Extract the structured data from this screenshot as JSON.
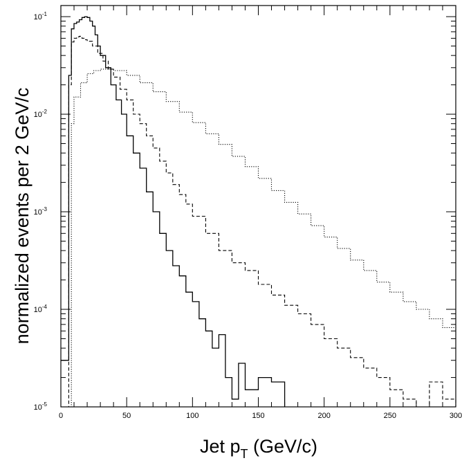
{
  "chart_data": {
    "type": "line",
    "title": "",
    "xlabel": "Jet p",
    "xlabel_sub": "T",
    "xlabel_unit": " (GeV/c)",
    "ylabel": "normalized events per 2 GeV/c",
    "xlim": [
      0,
      300
    ],
    "ylim": [
      1e-05,
      0.12
    ],
    "log_y": true,
    "grid": false,
    "x_ticks": [
      0,
      50,
      100,
      150,
      200,
      250,
      300
    ],
    "y_ticks": [
      {
        "value": 0.1,
        "base": "10",
        "exp": "-1"
      },
      {
        "value": 0.01,
        "base": "10",
        "exp": "-2"
      },
      {
        "value": 0.001,
        "base": "10",
        "exp": "-3"
      },
      {
        "value": 0.0001,
        "base": "10",
        "exp": "-4"
      },
      {
        "value": 1e-05,
        "base": "10",
        "exp": "-5"
      }
    ],
    "series": [
      {
        "style": "solid",
        "x": [
          0,
          4,
          6,
          8,
          10,
          12,
          14,
          16,
          18,
          20,
          22,
          24,
          26,
          28,
          30,
          34,
          38,
          42,
          46,
          50,
          55,
          60,
          65,
          70,
          75,
          80,
          85,
          90,
          95,
          100,
          105,
          110,
          115,
          120,
          125,
          130,
          135,
          140,
          150,
          160,
          170
        ],
        "y": [
          3e-05,
          3e-05,
          0.025,
          0.075,
          0.085,
          0.088,
          0.093,
          0.098,
          0.1,
          0.098,
          0.09,
          0.08,
          0.065,
          0.05,
          0.04,
          0.03,
          0.02,
          0.014,
          0.01,
          0.006,
          0.004,
          0.0028,
          0.0016,
          0.001,
          0.0006,
          0.0004,
          0.00028,
          0.00022,
          0.00015,
          0.00012,
          8e-05,
          6e-05,
          4e-05,
          5.5e-05,
          2e-05,
          1.2e-05,
          2.8e-05,
          1.5e-05,
          2e-05,
          1.8e-05,
          1e-05
        ]
      },
      {
        "style": "dashed",
        "x": [
          4,
          6,
          8,
          10,
          12,
          14,
          16,
          18,
          20,
          24,
          28,
          32,
          36,
          40,
          45,
          50,
          55,
          60,
          65,
          70,
          75,
          80,
          85,
          90,
          95,
          100,
          110,
          120,
          130,
          140,
          150,
          160,
          170,
          180,
          190,
          200,
          210,
          220,
          230,
          240,
          250,
          260,
          270,
          280,
          290,
          300
        ],
        "y": [
          1e-05,
          0.02,
          0.055,
          0.06,
          0.062,
          0.063,
          0.06,
          0.058,
          0.056,
          0.05,
          0.042,
          0.035,
          0.029,
          0.024,
          0.018,
          0.014,
          0.01,
          0.008,
          0.006,
          0.0045,
          0.0033,
          0.0025,
          0.0019,
          0.0015,
          0.0012,
          0.0009,
          0.0006,
          0.0004,
          0.0003,
          0.00025,
          0.00018,
          0.00014,
          0.00011,
          9e-05,
          7e-05,
          5e-05,
          4e-05,
          3.2e-05,
          2.5e-05,
          2e-05,
          1.5e-05,
          1.2e-05,
          1e-05,
          1.8e-05,
          1.2e-05,
          1e-05
        ]
      },
      {
        "style": "dotted",
        "x": [
          6,
          8,
          10,
          15,
          20,
          25,
          30,
          40,
          50,
          60,
          70,
          80,
          90,
          100,
          110,
          120,
          130,
          140,
          150,
          160,
          170,
          180,
          190,
          200,
          210,
          220,
          230,
          240,
          250,
          260,
          270,
          280,
          290,
          300
        ],
        "y": [
          1e-05,
          0.008,
          0.015,
          0.021,
          0.026,
          0.028,
          0.029,
          0.028,
          0.025,
          0.021,
          0.017,
          0.0135,
          0.0105,
          0.0082,
          0.0063,
          0.0049,
          0.0037,
          0.0029,
          0.0022,
          0.00165,
          0.00125,
          0.00095,
          0.00072,
          0.00055,
          0.00042,
          0.00032,
          0.00025,
          0.00019,
          0.00015,
          0.00012,
          0.0001,
          8e-05,
          6.5e-05,
          5.5e-05
        ]
      }
    ]
  }
}
